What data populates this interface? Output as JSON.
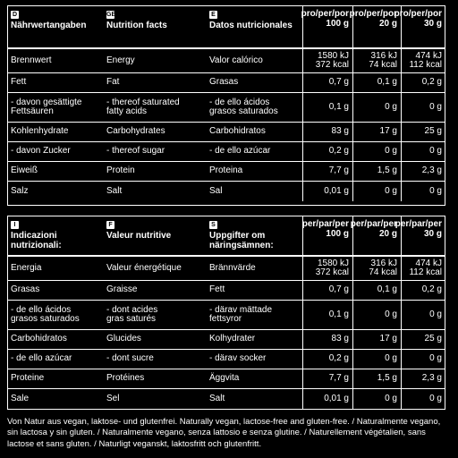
{
  "table1": {
    "headers": {
      "col1": {
        "flag": "D",
        "title": "Nährwertangaben"
      },
      "col2": {
        "flag": "GB",
        "title": "Nutrition facts"
      },
      "col3": {
        "flag": "E",
        "title": "Datos nutricionales"
      },
      "v1": "pro/per/por\n100 g",
      "v2": "pro/per/por\n20 g",
      "v3": "pro/per/por\n30 g"
    },
    "rows": [
      {
        "c1": "Brennwert",
        "c2": "Energy",
        "c3": "Valor calórico",
        "v1": "1580 kJ\n372 kcal",
        "v2": "316 kJ\n74 kcal",
        "v3": "474 kJ\n112 kcal"
      },
      {
        "c1": "Fett",
        "c2": "Fat",
        "c3": "Grasas",
        "v1": "0,7 g",
        "v2": "0,1 g",
        "v3": "0,2 g"
      },
      {
        "c1": "- davon gesättigte\nFettsäuren",
        "c2": "- thereof saturated\nfatty acids",
        "c3": "- de ello ácidos\ngrasos saturados",
        "v1": "0,1 g",
        "v2": "0 g",
        "v3": "0 g"
      },
      {
        "c1": "Kohlenhydrate",
        "c2": "Carbohydrates",
        "c3": "Carbohidratos",
        "v1": "83 g",
        "v2": "17 g",
        "v3": "25 g"
      },
      {
        "c1": "- davon Zucker",
        "c2": "- thereof sugar",
        "c3": "- de ello azúcar",
        "v1": "0,2 g",
        "v2": "0 g",
        "v3": "0 g"
      },
      {
        "c1": "Eiweiß",
        "c2": "Protein",
        "c3": "Proteina",
        "v1": "7,7 g",
        "v2": "1,5 g",
        "v3": "2,3 g"
      },
      {
        "c1": "Salz",
        "c2": "Salt",
        "c3": "Sal",
        "v1": "0,01 g",
        "v2": "0 g",
        "v3": "0 g"
      }
    ]
  },
  "table2": {
    "headers": {
      "col1": {
        "flag": "I",
        "title": "Indicazioni\nnutrizionali:"
      },
      "col2": {
        "flag": "F",
        "title": "Valeur nutritive"
      },
      "col3": {
        "flag": "S",
        "title": "Uppgifter om\nnäringsämnen:"
      },
      "v1": "per/par/per\n100 g",
      "v2": "per/par/per\n20 g",
      "v3": "per/par/per\n30 g"
    },
    "rows": [
      {
        "c1": "Energia",
        "c2": "Valeur énergétique",
        "c3": "Brännvärde",
        "v1": "1580 kJ\n372 kcal",
        "v2": "316 kJ\n74 kcal",
        "v3": "474 kJ\n112 kcal"
      },
      {
        "c1": "Grasas",
        "c2": "Graisse",
        "c3": "Fett",
        "v1": "0,7 g",
        "v2": "0,1 g",
        "v3": "0,2 g"
      },
      {
        "c1": "- de ello ácidos\ngrasos saturados",
        "c2": "- dont acides\ngras saturés",
        "c3": "- därav mättade\nfettsyror",
        "v1": "0,1 g",
        "v2": "0 g",
        "v3": "0 g"
      },
      {
        "c1": "Carbohidratos",
        "c2": "Glucides",
        "c3": "Kolhydrater",
        "v1": "83 g",
        "v2": "17 g",
        "v3": "25 g"
      },
      {
        "c1": "- de ello azúcar",
        "c2": "- dont sucre",
        "c3": "- därav socker",
        "v1": "0,2 g",
        "v2": "0 g",
        "v3": "0 g"
      },
      {
        "c1": "Proteine",
        "c2": "Protéines",
        "c3": "Äggvita",
        "v1": "7,7 g",
        "v2": "1,5 g",
        "v3": "2,3 g"
      },
      {
        "c1": "Sale",
        "c2": "Sel",
        "c3": "Salt",
        "v1": "0,01 g",
        "v2": "0 g",
        "v3": "0 g"
      }
    ]
  },
  "footer": {
    "text": "Von Natur aus vegan, laktose- und glutenfrei. Naturally vegan, lactose-free and gluten-free. / Naturalmente vegano, sin lactosa y sin gluten. / Naturalmente vegano, senza lattosio e senza glutine. / Naturellement végétalien, sans lactose et sans gluten. / Naturligt veganskt, laktosfritt och glutenfritt."
  }
}
